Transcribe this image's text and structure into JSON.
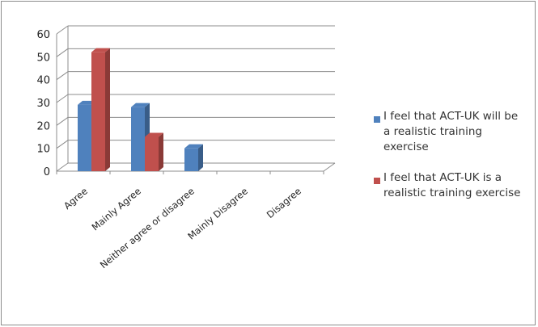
{
  "chart_data": {
    "type": "bar",
    "title": "",
    "xlabel": "",
    "ylabel": "",
    "categories": [
      "Agree",
      "Mainly Agree",
      "Neither agree or disagree",
      "Mainly Disagree",
      "Disagree"
    ],
    "series": [
      {
        "name": "I feel that ACT-UK will be a realistic training exercise",
        "color": "#4f81bd",
        "values": [
          29,
          28,
          10,
          0,
          0
        ]
      },
      {
        "name": "I feel that ACT-UK is a realistic training exercise",
        "color": "#c0504d",
        "values": [
          52,
          15,
          0,
          0,
          0
        ]
      }
    ],
    "ylim": [
      0,
      60
    ],
    "yticks": [
      0,
      10,
      20,
      30,
      40,
      50,
      60
    ],
    "grid": true,
    "style": "3d-clustered-column",
    "legend_position": "right"
  },
  "legend": {
    "items": [
      {
        "lines": [
          "I feel that ACT-UK will be",
          "a realistic training",
          "exercise"
        ],
        "color": "#4f81bd"
      },
      {
        "lines": [
          "I feel that ACT-UK is a",
          "realistic training exercise"
        ],
        "color": "#c0504d"
      }
    ]
  }
}
